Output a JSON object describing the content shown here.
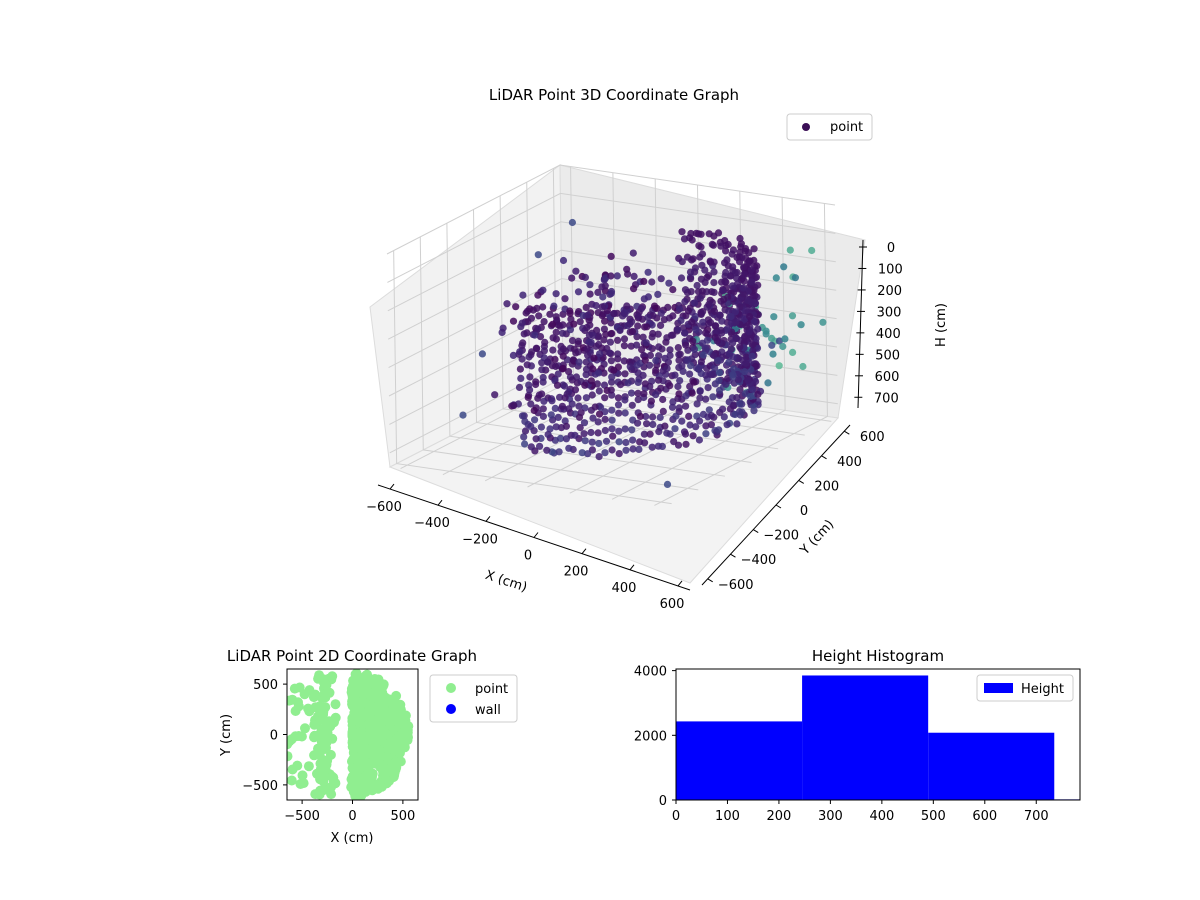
{
  "colors": {
    "scatter3d_dark": "#3b0f56",
    "scatter3d_mid": "#3f4a8a",
    "scatter3d_teal": "#5fb4a8",
    "point2d": "#90ee90",
    "wall": "#0000ff",
    "height_bar": "#0000ff"
  },
  "chart_data": [
    {
      "type": "scatter",
      "projection": "3d",
      "title": "LiDAR Point 3D Coordinate Graph",
      "xlabel": "X (cm)",
      "ylabel": "Y (cm)",
      "zlabel": "H (cm)",
      "xticks": [
        "−600",
        "−400",
        "−200",
        "0",
        "200",
        "400",
        "600"
      ],
      "yticks": [
        "−600",
        "−400",
        "−200",
        "0",
        "200",
        "400",
        "600"
      ],
      "zticks": [
        "0",
        "100",
        "200",
        "300",
        "400",
        "500",
        "600",
        "700"
      ],
      "xlim": [
        -650,
        650
      ],
      "ylim": [
        -650,
        650
      ],
      "zlim": [
        750,
        0
      ],
      "zaxis_inverted": true,
      "legend": [
        {
          "label": "point",
          "color": "#3b0f56"
        }
      ],
      "legend_position": "upper-right",
      "grid": true,
      "colormap": "viridis (by height)",
      "ring_structure": {
        "description": "dense half-ring of points around the sensor",
        "x_range": [
          -300,
          500
        ],
        "y_range": [
          -550,
          600
        ],
        "h_range": [
          150,
          650
        ]
      },
      "outliers": [
        {
          "x": -600,
          "y": 400,
          "h": 250
        },
        {
          "x": -500,
          "y": 500,
          "h": 150
        },
        {
          "x": -650,
          "y": -100,
          "h": 700
        },
        {
          "x": -300,
          "y": -500,
          "h": 350
        },
        {
          "x": 600,
          "y": -550,
          "h": 700
        },
        {
          "x": 500,
          "y": 400,
          "h": 450
        },
        {
          "x": 600,
          "y": 300,
          "h": 400
        }
      ]
    },
    {
      "type": "scatter",
      "title": "LiDAR Point 2D Coordinate Graph",
      "xlabel": "X (cm)",
      "ylabel": "Y (cm)",
      "xticks": [
        "−500",
        "0",
        "500"
      ],
      "yticks": [
        "500",
        "0",
        "−500"
      ],
      "xlim": [
        -650,
        650
      ],
      "ylim": [
        -650,
        650
      ],
      "series": [
        {
          "name": "point",
          "color": "#90ee90",
          "description": "filled half-disc region roughly from x=-300 to x=550, y=-600 to y=600, plus scattered points to the left"
        },
        {
          "name": "wall",
          "color": "#0000ff",
          "points": []
        }
      ],
      "legend_position": "outside-right"
    },
    {
      "type": "bar",
      "subtype": "histogram",
      "title": "Height Histogram",
      "xticks": [
        "0",
        "100",
        "200",
        "300",
        "400",
        "500",
        "600",
        "700"
      ],
      "yticks": [
        "0",
        "2000",
        "4000"
      ],
      "xlim": [
        0,
        785
      ],
      "ylim": [
        0,
        4050
      ],
      "bins": [
        {
          "from": 0,
          "to": 245,
          "count": 2430
        },
        {
          "from": 245,
          "to": 490,
          "count": 3850
        },
        {
          "from": 490,
          "to": 735,
          "count": 2080
        },
        {
          "from": 735,
          "to": 785,
          "count": 20
        }
      ],
      "legend": [
        {
          "label": "Height",
          "color": "#0000ff"
        }
      ],
      "legend_position": "upper-right"
    }
  ]
}
